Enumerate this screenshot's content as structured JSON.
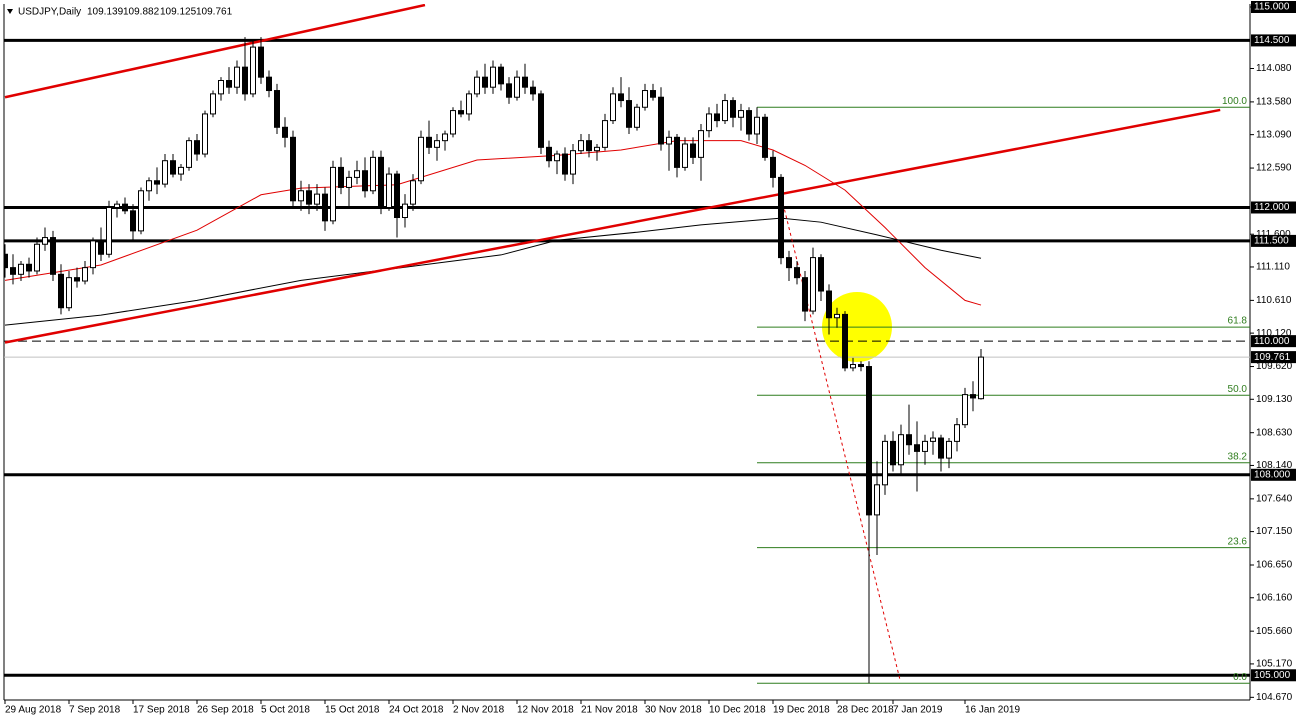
{
  "chart_data": {
    "type": "candlestick",
    "title": "USDJPY,Daily",
    "up_color": "#ffffff",
    "down_color": "#000000",
    "outline_color": "#000000",
    "categories": [
      "29 Aug 2018",
      null,
      null,
      null,
      null,
      null,
      null,
      null,
      "7 Sep 2018",
      null,
      null,
      null,
      null,
      null,
      null,
      null,
      "17 Sep 2018",
      null,
      null,
      null,
      null,
      null,
      null,
      null,
      "26 Sep 2018",
      null,
      null,
      null,
      null,
      null,
      null,
      null,
      "5 Oct 2018",
      null,
      null,
      null,
      null,
      null,
      null,
      null,
      "15 Oct 2018",
      null,
      null,
      null,
      null,
      null,
      null,
      null,
      "24 Oct 2018",
      null,
      null,
      null,
      null,
      null,
      null,
      null,
      "2 Nov 2018",
      null,
      null,
      null,
      null,
      null,
      null,
      null,
      "12 Nov 2018",
      null,
      null,
      null,
      null,
      null,
      null,
      null,
      "21 Nov 2018",
      null,
      null,
      null,
      null,
      null,
      null,
      null,
      "30 Nov 2018",
      null,
      null,
      null,
      null,
      null,
      null,
      null,
      "10 Dec 2018",
      null,
      null,
      null,
      null,
      null,
      null,
      null,
      "19 Dec 2018",
      null,
      null,
      null,
      null,
      null,
      null,
      null,
      "28 Dec 2018",
      null,
      null,
      null,
      null,
      null,
      null,
      "7 Jan 2019",
      null,
      null,
      null,
      null,
      null,
      null,
      null,
      null,
      "16 Jan 2019",
      null,
      null
    ],
    "ohlc": [
      [
        111.3,
        111.45,
        110.95,
        111.1
      ],
      [
        111.1,
        111.3,
        110.85,
        111.0
      ],
      [
        111.0,
        111.2,
        110.9,
        111.15
      ],
      [
        111.15,
        111.25,
        110.95,
        111.05
      ],
      [
        111.05,
        111.55,
        111.0,
        111.45
      ],
      [
        111.45,
        111.7,
        111.35,
        111.55
      ],
      [
        111.55,
        111.65,
        110.9,
        111.0
      ],
      [
        111.0,
        111.15,
        110.4,
        110.5
      ],
      [
        110.5,
        111.05,
        110.45,
        110.95
      ],
      [
        110.95,
        111.1,
        110.8,
        110.9
      ],
      [
        110.9,
        111.2,
        110.85,
        111.1
      ],
      [
        111.1,
        111.55,
        111.0,
        111.5
      ],
      [
        111.5,
        111.7,
        111.2,
        111.3
      ],
      [
        111.3,
        112.1,
        111.25,
        112.0
      ],
      [
        112.0,
        112.1,
        111.85,
        112.05
      ],
      [
        112.05,
        112.15,
        111.9,
        111.95
      ],
      [
        111.95,
        112.05,
        111.5,
        111.65
      ],
      [
        111.65,
        112.3,
        111.6,
        112.25
      ],
      [
        112.25,
        112.45,
        112.1,
        112.4
      ],
      [
        112.4,
        112.6,
        112.2,
        112.35
      ],
      [
        112.35,
        112.8,
        112.3,
        112.7
      ],
      [
        112.7,
        112.8,
        112.45,
        112.5
      ],
      [
        112.5,
        112.65,
        112.4,
        112.6
      ],
      [
        112.6,
        113.05,
        112.55,
        113.0
      ],
      [
        113.0,
        113.1,
        112.7,
        112.8
      ],
      [
        112.8,
        113.45,
        112.75,
        113.4
      ],
      [
        113.4,
        113.75,
        113.35,
        113.7
      ],
      [
        113.7,
        113.95,
        113.6,
        113.9
      ],
      [
        113.9,
        114.1,
        113.7,
        113.8
      ],
      [
        113.8,
        114.2,
        113.7,
        114.1
      ],
      [
        114.1,
        114.55,
        113.6,
        113.7
      ],
      [
        113.7,
        114.5,
        113.65,
        114.4
      ],
      [
        114.4,
        114.55,
        113.85,
        113.95
      ],
      [
        113.95,
        114.05,
        113.65,
        113.75
      ],
      [
        113.75,
        113.85,
        113.1,
        113.2
      ],
      [
        113.2,
        113.35,
        112.9,
        113.05
      ],
      [
        113.05,
        113.15,
        112.0,
        112.1
      ],
      [
        112.1,
        112.4,
        111.95,
        112.25
      ],
      [
        112.25,
        112.35,
        111.9,
        112.05
      ],
      [
        112.05,
        112.35,
        111.95,
        112.2
      ],
      [
        112.2,
        112.3,
        111.65,
        111.8
      ],
      [
        111.8,
        112.7,
        111.75,
        112.6
      ],
      [
        112.6,
        112.75,
        112.2,
        112.3
      ],
      [
        112.3,
        112.55,
        112.0,
        112.45
      ],
      [
        112.45,
        112.7,
        112.35,
        112.55
      ],
      [
        112.55,
        112.75,
        112.15,
        112.25
      ],
      [
        112.25,
        112.85,
        112.2,
        112.75
      ],
      [
        112.75,
        112.85,
        111.9,
        112.0
      ],
      [
        112.0,
        112.6,
        111.95,
        112.5
      ],
      [
        112.5,
        112.55,
        111.55,
        111.85
      ],
      [
        111.85,
        112.2,
        111.7,
        112.05
      ],
      [
        112.05,
        112.5,
        111.95,
        112.4
      ],
      [
        112.4,
        113.15,
        112.35,
        113.05
      ],
      [
        113.05,
        113.3,
        112.8,
        112.9
      ],
      [
        112.9,
        113.1,
        112.7,
        113.0
      ],
      [
        113.0,
        113.15,
        112.85,
        113.1
      ],
      [
        113.1,
        113.5,
        113.05,
        113.45
      ],
      [
        113.45,
        113.6,
        113.35,
        113.4
      ],
      [
        113.4,
        113.75,
        113.3,
        113.7
      ],
      [
        113.7,
        114.05,
        113.65,
        113.95
      ],
      [
        113.95,
        114.15,
        113.7,
        113.8
      ],
      [
        113.8,
        114.2,
        113.7,
        114.1
      ],
      [
        114.1,
        114.15,
        113.75,
        113.85
      ],
      [
        113.85,
        113.95,
        113.55,
        113.65
      ],
      [
        113.65,
        114.05,
        113.6,
        113.95
      ],
      [
        113.95,
        114.15,
        113.7,
        113.8
      ],
      [
        113.8,
        113.9,
        113.6,
        113.7
      ],
      [
        113.7,
        113.75,
        112.8,
        112.9
      ],
      [
        112.9,
        113.0,
        112.6,
        112.7
      ],
      [
        112.7,
        112.85,
        112.5,
        112.8
      ],
      [
        112.8,
        112.9,
        112.4,
        112.5
      ],
      [
        112.5,
        112.95,
        112.35,
        112.85
      ],
      [
        112.85,
        113.1,
        112.8,
        113.0
      ],
      [
        113.0,
        113.1,
        112.75,
        112.85
      ],
      [
        112.85,
        112.95,
        112.7,
        112.9
      ],
      [
        112.9,
        113.4,
        112.85,
        113.3
      ],
      [
        113.3,
        113.8,
        113.25,
        113.7
      ],
      [
        113.7,
        113.95,
        113.5,
        113.6
      ],
      [
        113.6,
        113.8,
        113.1,
        113.2
      ],
      [
        113.2,
        113.55,
        113.15,
        113.5
      ],
      [
        113.5,
        113.85,
        113.45,
        113.75
      ],
      [
        113.75,
        113.85,
        113.6,
        113.65
      ],
      [
        113.65,
        113.8,
        112.85,
        112.95
      ],
      [
        112.95,
        113.15,
        112.55,
        113.05
      ],
      [
        113.05,
        113.1,
        112.45,
        112.6
      ],
      [
        112.6,
        113.05,
        112.55,
        112.95
      ],
      [
        112.95,
        113.05,
        112.65,
        112.75
      ],
      [
        112.75,
        113.25,
        112.4,
        113.15
      ],
      [
        113.15,
        113.5,
        113.05,
        113.4
      ],
      [
        113.4,
        113.55,
        113.2,
        113.3
      ],
      [
        113.3,
        113.7,
        113.25,
        113.6
      ],
      [
        113.6,
        113.65,
        113.2,
        113.35
      ],
      [
        113.35,
        113.55,
        113.15,
        113.45
      ],
      [
        113.45,
        113.5,
        113.0,
        113.1
      ],
      [
        113.1,
        113.5,
        112.95,
        113.35
      ],
      [
        113.35,
        113.4,
        112.7,
        112.75
      ],
      [
        112.75,
        112.85,
        112.3,
        112.45
      ],
      [
        112.45,
        112.5,
        111.15,
        111.25
      ],
      [
        111.25,
        111.35,
        110.9,
        111.1
      ],
      [
        111.1,
        111.2,
        110.85,
        110.95
      ],
      [
        110.95,
        111.05,
        110.3,
        110.45
      ],
      [
        110.45,
        111.4,
        110.4,
        111.25
      ],
      [
        111.25,
        111.3,
        110.6,
        110.75
      ],
      [
        110.75,
        110.85,
        110.1,
        110.35
      ],
      [
        110.35,
        110.5,
        110.2,
        110.4
      ],
      [
        110.4,
        110.45,
        109.55,
        109.6
      ],
      [
        109.6,
        109.75,
        109.55,
        109.65
      ],
      [
        109.65,
        109.7,
        109.55,
        109.62
      ],
      [
        109.62,
        109.7,
        104.88,
        107.4
      ],
      [
        107.4,
        108.2,
        106.8,
        107.85
      ],
      [
        107.85,
        108.6,
        107.7,
        108.5
      ],
      [
        108.5,
        108.65,
        108.05,
        108.15
      ],
      [
        108.15,
        108.75,
        108.0,
        108.6
      ],
      [
        108.6,
        109.05,
        108.3,
        108.45
      ],
      [
        108.45,
        108.8,
        107.75,
        108.35
      ],
      [
        108.35,
        108.6,
        108.15,
        108.5
      ],
      [
        108.5,
        108.65,
        108.3,
        108.55
      ],
      [
        108.55,
        108.6,
        108.05,
        108.25
      ],
      [
        108.25,
        108.55,
        108.1,
        108.5
      ],
      [
        108.5,
        108.85,
        108.35,
        108.75
      ],
      [
        108.75,
        109.3,
        108.7,
        109.2
      ],
      [
        109.2,
        109.4,
        108.95,
        109.15
      ],
      [
        109.139,
        109.882,
        109.125,
        109.761
      ]
    ],
    "ylim": [
      104.63,
      115.03
    ],
    "yticks": [
      {
        "value": 115.0,
        "label": "115.000"
      },
      {
        "value": 114.08,
        "label": "114.080"
      },
      {
        "value": 113.58,
        "label": "113.580"
      },
      {
        "value": 113.09,
        "label": "113.090"
      },
      {
        "value": 112.59,
        "label": "112.590"
      },
      {
        "value": 111.6,
        "label": "111.600"
      },
      {
        "value": 111.11,
        "label": "111.110"
      },
      {
        "value": 110.61,
        "label": "110.610"
      },
      {
        "value": 110.12,
        "label": "110.120"
      },
      {
        "value": 109.62,
        "label": "109.620"
      },
      {
        "value": 109.13,
        "label": "109.130"
      },
      {
        "value": 108.63,
        "label": "108.630"
      },
      {
        "value": 108.14,
        "label": "108.140"
      },
      {
        "value": 107.64,
        "label": "107.640"
      },
      {
        "value": 107.15,
        "label": "107.150"
      },
      {
        "value": 106.65,
        "label": "106.650"
      },
      {
        "value": 106.16,
        "label": "106.160"
      },
      {
        "value": 105.66,
        "label": "105.660"
      },
      {
        "value": 105.17,
        "label": "105.170"
      },
      {
        "value": 104.67,
        "label": "104.670"
      }
    ],
    "moving_averages": [
      {
        "color": "#e00000",
        "x": [
          0,
          12,
          24,
          32,
          37,
          49,
          59,
          69,
          77,
          84,
          92,
          96,
          100,
          105,
          110,
          115,
          120,
          122
        ],
        "values": [
          110.91,
          111.14,
          111.66,
          112.19,
          112.29,
          112.34,
          112.71,
          112.78,
          112.86,
          113.0,
          113.0,
          112.86,
          112.63,
          112.26,
          111.7,
          111.1,
          110.61,
          110.54
        ]
      },
      {
        "color": "#000000",
        "x": [
          0,
          12,
          24,
          37,
          49,
          62,
          69,
          79,
          87,
          97,
          102,
          109,
          117,
          122
        ],
        "values": [
          110.24,
          110.39,
          110.61,
          110.91,
          111.09,
          111.29,
          111.51,
          111.63,
          111.74,
          111.84,
          111.78,
          111.59,
          111.36,
          111.24
        ]
      }
    ],
    "trendlines": [
      {
        "color": "#e00000",
        "dashed": false,
        "x": [
          0,
          52.5
        ],
        "y": [
          113.65,
          115.03
        ]
      },
      {
        "color": "#e00000",
        "dashed": false,
        "x": [
          0,
          151.9
        ],
        "y": [
          109.98,
          113.46
        ]
      },
      {
        "color": "#e00000",
        "dashed": true,
        "x": [
          96.9,
          111.9
        ],
        "y": [
          112.23,
          104.92
        ]
      }
    ],
    "levels": [
      {
        "value": 115.0,
        "label": "115.000",
        "dashed": false,
        "line": false
      },
      {
        "value": 114.5,
        "label": "114.500",
        "dashed": false,
        "line": true
      },
      {
        "value": 112.0,
        "label": "112.000",
        "dashed": false,
        "line": true
      },
      {
        "value": 111.5,
        "label": "111.500",
        "dashed": false,
        "line": true
      },
      {
        "value": 110.0,
        "label": "110.000",
        "dashed": true,
        "line": true
      },
      {
        "value": 108.0,
        "label": "108.000",
        "dashed": false,
        "line": true
      },
      {
        "value": 105.0,
        "label": "105.000",
        "dashed": false,
        "line": true
      }
    ],
    "fibonacci": {
      "color": "#2f7d1e",
      "x_start": 94,
      "levels": [
        {
          "label": "100.0",
          "value": 113.5
        },
        {
          "label": "61.8",
          "value": 110.21
        },
        {
          "label": "50.0",
          "value": 109.19
        },
        {
          "label": "38.2",
          "value": 108.18
        },
        {
          "label": "23.6",
          "value": 106.91
        },
        {
          "label": "0.0",
          "value": 104.88
        }
      ]
    }
  }
}
